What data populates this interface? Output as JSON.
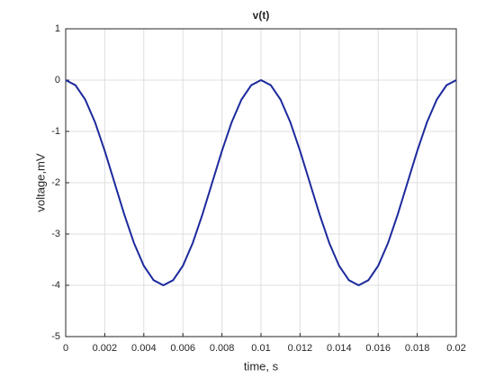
{
  "chart_data": {
    "type": "line",
    "title": "v(t)",
    "x_label": "time, s",
    "y_label": "voltage,mV",
    "x": [
      0,
      0.0005,
      0.001,
      0.0015,
      0.002,
      0.0025,
      0.003,
      0.0035,
      0.004,
      0.0045,
      0.005,
      0.0055,
      0.006,
      0.0065,
      0.007,
      0.0075,
      0.008,
      0.0085,
      0.009,
      0.0095,
      0.01,
      0.0105,
      0.011,
      0.0115,
      0.012,
      0.0125,
      0.013,
      0.0135,
      0.014,
      0.0145,
      0.015,
      0.0155,
      0.016,
      0.0165,
      0.017,
      0.0175,
      0.018,
      0.0185,
      0.019,
      0.0195,
      0.02
    ],
    "series": [
      {
        "name": "v(t)",
        "color": "#1c2a9c",
        "values": [
          0,
          -0.1,
          -0.38,
          -0.82,
          -1.38,
          -2,
          -2.62,
          -3.18,
          -3.62,
          -3.9,
          -4,
          -3.9,
          -3.62,
          -3.18,
          -2.62,
          -2,
          -1.38,
          -0.82,
          -0.38,
          -0.1,
          0,
          -0.1,
          -0.38,
          -0.82,
          -1.38,
          -2,
          -2.62,
          -3.18,
          -3.62,
          -3.9,
          -4,
          -3.9,
          -3.62,
          -3.18,
          -2.62,
          -2,
          -1.38,
          -0.82,
          -0.38,
          -0.1,
          0
        ]
      }
    ],
    "xlim": [
      0,
      0.02
    ],
    "xticks": [
      0,
      0.002,
      0.004,
      0.006,
      0.008,
      0.01,
      0.012,
      0.014,
      0.016,
      0.018,
      0.02
    ],
    "ylim": [
      -5,
      1
    ],
    "yticks": [
      -5,
      -4,
      -3,
      -2,
      -1,
      0,
      1
    ],
    "grid": true
  }
}
